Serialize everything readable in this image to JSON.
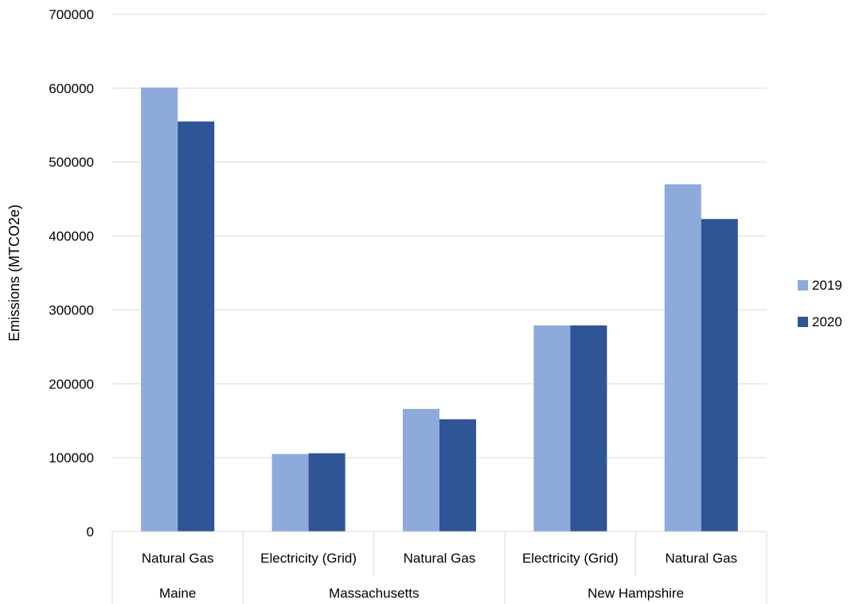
{
  "chart_data": {
    "type": "bar",
    "title": "",
    "xlabel": "",
    "ylabel": "Emissions (MTCO2e)",
    "ylim": [
      0,
      700000
    ],
    "yticks": [
      0,
      100000,
      200000,
      300000,
      400000,
      500000,
      600000,
      700000
    ],
    "grid": true,
    "legend_position": "right",
    "groups": [
      {
        "label": "Maine",
        "categories": [
          "Natural Gas"
        ]
      },
      {
        "label": "Massachusetts",
        "categories": [
          "Electricity (Grid)",
          "Natural Gas"
        ]
      },
      {
        "label": "New Hampshire",
        "categories": [
          "Electricity (Grid)",
          "Natural Gas"
        ]
      }
    ],
    "categories": [
      "Natural Gas",
      "Electricity (Grid)",
      "Natural Gas",
      "Electricity (Grid)",
      "Natural Gas"
    ],
    "series": [
      {
        "name": "2019",
        "color": "#8eaadb",
        "values": [
          601000,
          105000,
          166000,
          279000,
          470000
        ]
      },
      {
        "name": "2020",
        "color": "#2f5597",
        "values": [
          555000,
          106000,
          152000,
          279000,
          423000
        ]
      }
    ]
  }
}
